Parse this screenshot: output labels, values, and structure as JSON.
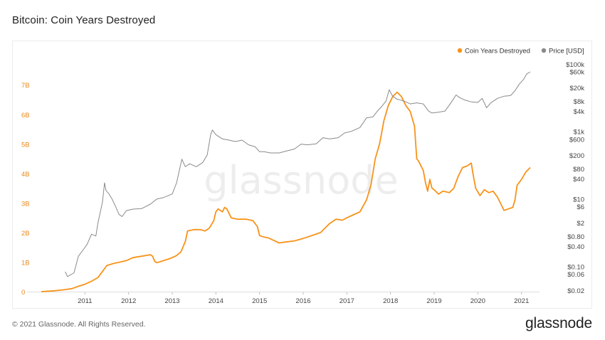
{
  "title": "Bitcoin: Coin Years Destroyed",
  "footer": {
    "copyright": "© 2021 Glassnode. All Rights Reserved.",
    "brand": "glassnode"
  },
  "watermark": "glassnode",
  "colors": {
    "cyd": "#f7931a",
    "price": "#8a8a8a",
    "left_tick": "#e8891c",
    "axis_text": "#444444"
  },
  "chart_data": {
    "type": "line",
    "title": "Bitcoin: Coin Years Destroyed",
    "legend": {
      "position": "top-right",
      "entries": [
        {
          "name": "Coin Years Destroyed",
          "color": "#f7931a"
        },
        {
          "name": "Price [USD]",
          "color": "#8a8a8a"
        }
      ]
    },
    "grid": false,
    "x_axis": {
      "range": [
        2010.0,
        2021.25
      ],
      "ticks": [
        {
          "value": 2011,
          "label": "2011"
        },
        {
          "value": 2012,
          "label": "2012"
        },
        {
          "value": 2013,
          "label": "2013"
        },
        {
          "value": 2014,
          "label": "2014"
        },
        {
          "value": 2015,
          "label": "2015"
        },
        {
          "value": 2016,
          "label": "2016"
        },
        {
          "value": 2017,
          "label": "2017"
        },
        {
          "value": 2018,
          "label": "2018"
        },
        {
          "value": 2019,
          "label": "2019"
        },
        {
          "value": 2020,
          "label": "2020"
        },
        {
          "value": 2021,
          "label": "2021"
        }
      ]
    },
    "y_left": {
      "scale": "linear",
      "range": [
        0,
        7.8
      ],
      "unit": "billion",
      "ticks": [
        {
          "value": 0,
          "label": "0"
        },
        {
          "value": 1,
          "label": "1B"
        },
        {
          "value": 2,
          "label": "2B"
        },
        {
          "value": 3,
          "label": "3B"
        },
        {
          "value": 4,
          "label": "4B"
        },
        {
          "value": 5,
          "label": "5B"
        },
        {
          "value": 6,
          "label": "6B"
        },
        {
          "value": 7,
          "label": "7B"
        }
      ]
    },
    "y_right": {
      "scale": "log",
      "range": [
        0.018,
        120000
      ],
      "ticks": [
        {
          "value": 0.02,
          "label": "$0.02"
        },
        {
          "value": 0.06,
          "label": "$0.06"
        },
        {
          "value": 0.1,
          "label": "$0.10"
        },
        {
          "value": 0.4,
          "label": "$0.40"
        },
        {
          "value": 0.8,
          "label": "$0.80"
        },
        {
          "value": 2,
          "label": "$2"
        },
        {
          "value": 6,
          "label": "$6"
        },
        {
          "value": 10,
          "label": "$10"
        },
        {
          "value": 40,
          "label": "$40"
        },
        {
          "value": 80,
          "label": "$80"
        },
        {
          "value": 200,
          "label": "$200"
        },
        {
          "value": 600,
          "label": "$600"
        },
        {
          "value": 1000,
          "label": "$1k"
        },
        {
          "value": 4000,
          "label": "$4k"
        },
        {
          "value": 8000,
          "label": "$8k"
        },
        {
          "value": 20000,
          "label": "$20k"
        },
        {
          "value": 60000,
          "label": "$60k"
        },
        {
          "value": 100000,
          "label": "$100k"
        }
      ]
    },
    "series": [
      {
        "name": "Coin Years Destroyed",
        "axis": "left",
        "points": [
          [
            2010.0,
            0.0
          ],
          [
            2010.3,
            0.03
          ],
          [
            2010.5,
            0.06
          ],
          [
            2010.7,
            0.1
          ],
          [
            2010.85,
            0.18
          ],
          [
            2011.0,
            0.25
          ],
          [
            2011.15,
            0.35
          ],
          [
            2011.3,
            0.48
          ],
          [
            2011.4,
            0.68
          ],
          [
            2011.5,
            0.88
          ],
          [
            2011.65,
            0.95
          ],
          [
            2011.8,
            1.0
          ],
          [
            2011.95,
            1.05
          ],
          [
            2012.1,
            1.15
          ],
          [
            2012.3,
            1.2
          ],
          [
            2012.5,
            1.25
          ],
          [
            2012.55,
            1.2
          ],
          [
            2012.6,
            1.02
          ],
          [
            2012.65,
            0.98
          ],
          [
            2012.8,
            1.05
          ],
          [
            2012.95,
            1.12
          ],
          [
            2013.1,
            1.22
          ],
          [
            2013.2,
            1.35
          ],
          [
            2013.3,
            1.7
          ],
          [
            2013.35,
            2.05
          ],
          [
            2013.5,
            2.1
          ],
          [
            2013.65,
            2.1
          ],
          [
            2013.75,
            2.05
          ],
          [
            2013.85,
            2.15
          ],
          [
            2013.95,
            2.4
          ],
          [
            2014.0,
            2.7
          ],
          [
            2014.05,
            2.8
          ],
          [
            2014.15,
            2.7
          ],
          [
            2014.2,
            2.85
          ],
          [
            2014.25,
            2.8
          ],
          [
            2014.35,
            2.5
          ],
          [
            2014.5,
            2.45
          ],
          [
            2014.7,
            2.45
          ],
          [
            2014.85,
            2.4
          ],
          [
            2014.95,
            2.2
          ],
          [
            2015.0,
            1.9
          ],
          [
            2015.1,
            1.85
          ],
          [
            2015.2,
            1.82
          ],
          [
            2015.3,
            1.75
          ],
          [
            2015.45,
            1.65
          ],
          [
            2015.6,
            1.68
          ],
          [
            2015.8,
            1.72
          ],
          [
            2016.0,
            1.8
          ],
          [
            2016.2,
            1.9
          ],
          [
            2016.4,
            2.0
          ],
          [
            2016.6,
            2.3
          ],
          [
            2016.75,
            2.45
          ],
          [
            2016.9,
            2.42
          ],
          [
            2017.0,
            2.5
          ],
          [
            2017.15,
            2.6
          ],
          [
            2017.3,
            2.7
          ],
          [
            2017.45,
            3.1
          ],
          [
            2017.55,
            3.6
          ],
          [
            2017.65,
            4.5
          ],
          [
            2017.75,
            5.0
          ],
          [
            2017.85,
            5.8
          ],
          [
            2017.95,
            6.3
          ],
          [
            2018.05,
            6.6
          ],
          [
            2018.15,
            6.75
          ],
          [
            2018.25,
            6.6
          ],
          [
            2018.35,
            6.3
          ],
          [
            2018.45,
            6.1
          ],
          [
            2018.55,
            5.6
          ],
          [
            2018.6,
            4.5
          ],
          [
            2018.65,
            4.4
          ],
          [
            2018.75,
            4.1
          ],
          [
            2018.8,
            3.7
          ],
          [
            2018.85,
            3.4
          ],
          [
            2018.9,
            3.8
          ],
          [
            2018.95,
            3.5
          ],
          [
            2019.0,
            3.45
          ],
          [
            2019.1,
            3.3
          ],
          [
            2019.2,
            3.4
          ],
          [
            2019.35,
            3.35
          ],
          [
            2019.45,
            3.5
          ],
          [
            2019.55,
            3.9
          ],
          [
            2019.65,
            4.2
          ],
          [
            2019.75,
            4.25
          ],
          [
            2019.85,
            4.35
          ],
          [
            2019.9,
            3.9
          ],
          [
            2019.95,
            3.5
          ],
          [
            2020.05,
            3.25
          ],
          [
            2020.15,
            3.45
          ],
          [
            2020.25,
            3.35
          ],
          [
            2020.35,
            3.4
          ],
          [
            2020.45,
            3.2
          ],
          [
            2020.55,
            2.9
          ],
          [
            2020.6,
            2.75
          ],
          [
            2020.7,
            2.8
          ],
          [
            2020.8,
            2.85
          ],
          [
            2020.85,
            3.1
          ],
          [
            2020.9,
            3.6
          ],
          [
            2021.0,
            3.8
          ],
          [
            2021.1,
            4.05
          ],
          [
            2021.2,
            4.2
          ]
        ]
      },
      {
        "name": "Price [USD]",
        "axis": "right",
        "points": [
          [
            2010.55,
            0.07
          ],
          [
            2010.6,
            0.05
          ],
          [
            2010.75,
            0.065
          ],
          [
            2010.85,
            0.2
          ],
          [
            2010.95,
            0.3
          ],
          [
            2011.05,
            0.45
          ],
          [
            2011.15,
            0.9
          ],
          [
            2011.25,
            0.8
          ],
          [
            2011.3,
            2.0
          ],
          [
            2011.4,
            8.0
          ],
          [
            2011.45,
            30.0
          ],
          [
            2011.48,
            18.0
          ],
          [
            2011.55,
            14.0
          ],
          [
            2011.62,
            10.0
          ],
          [
            2011.7,
            6.0
          ],
          [
            2011.78,
            3.5
          ],
          [
            2011.85,
            3.0
          ],
          [
            2011.95,
            4.5
          ],
          [
            2012.1,
            5.0
          ],
          [
            2012.3,
            5.2
          ],
          [
            2012.5,
            7.0
          ],
          [
            2012.65,
            10.0
          ],
          [
            2012.8,
            11.0
          ],
          [
            2013.0,
            14.0
          ],
          [
            2013.1,
            30.0
          ],
          [
            2013.22,
            150.0
          ],
          [
            2013.3,
            90.0
          ],
          [
            2013.4,
            110.0
          ],
          [
            2013.55,
            90.0
          ],
          [
            2013.7,
            120.0
          ],
          [
            2013.8,
            200.0
          ],
          [
            2013.88,
            800.0
          ],
          [
            2013.92,
            1100.0
          ],
          [
            2014.0,
            800.0
          ],
          [
            2014.15,
            600.0
          ],
          [
            2014.3,
            550.0
          ],
          [
            2014.45,
            500.0
          ],
          [
            2014.6,
            550.0
          ],
          [
            2014.75,
            400.0
          ],
          [
            2014.9,
            350.0
          ],
          [
            2015.0,
            250.0
          ],
          [
            2015.1,
            250.0
          ],
          [
            2015.25,
            230.0
          ],
          [
            2015.45,
            230.0
          ],
          [
            2015.6,
            260.0
          ],
          [
            2015.8,
            300.0
          ],
          [
            2015.95,
            420.0
          ],
          [
            2016.1,
            400.0
          ],
          [
            2016.3,
            430.0
          ],
          [
            2016.45,
            650.0
          ],
          [
            2016.6,
            600.0
          ],
          [
            2016.8,
            650.0
          ],
          [
            2016.95,
            900.0
          ],
          [
            2017.1,
            1000.0
          ],
          [
            2017.3,
            1300.0
          ],
          [
            2017.45,
            2500.0
          ],
          [
            2017.6,
            2700.0
          ],
          [
            2017.7,
            4000.0
          ],
          [
            2017.8,
            5500.0
          ],
          [
            2017.9,
            8000.0
          ],
          [
            2017.97,
            17000.0
          ],
          [
            2018.05,
            11000.0
          ],
          [
            2018.15,
            9000.0
          ],
          [
            2018.3,
            8000.0
          ],
          [
            2018.45,
            6500.0
          ],
          [
            2018.6,
            7000.0
          ],
          [
            2018.75,
            6500.0
          ],
          [
            2018.87,
            4000.0
          ],
          [
            2018.95,
            3500.0
          ],
          [
            2019.1,
            3700.0
          ],
          [
            2019.25,
            4000.0
          ],
          [
            2019.4,
            7500.0
          ],
          [
            2019.5,
            12000.0
          ],
          [
            2019.58,
            10000.0
          ],
          [
            2019.7,
            8500.0
          ],
          [
            2019.85,
            7500.0
          ],
          [
            2020.0,
            7200.0
          ],
          [
            2020.1,
            9500.0
          ],
          [
            2020.2,
            5000.0
          ],
          [
            2020.3,
            7000.0
          ],
          [
            2020.45,
            9500.0
          ],
          [
            2020.6,
            11000.0
          ],
          [
            2020.75,
            11500.0
          ],
          [
            2020.85,
            16000.0
          ],
          [
            2020.95,
            25000.0
          ],
          [
            2021.05,
            35000.0
          ],
          [
            2021.12,
            50000.0
          ],
          [
            2021.2,
            58000.0
          ]
        ]
      }
    ]
  }
}
